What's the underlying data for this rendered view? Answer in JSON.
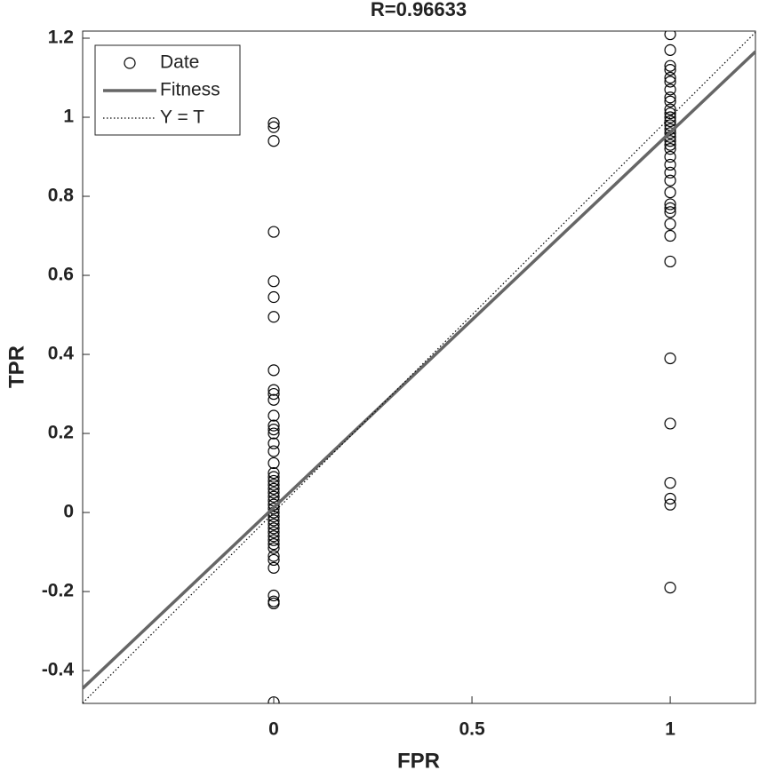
{
  "chart_data": {
    "type": "scatter",
    "title": "R=0.96633",
    "x_label": "FPR",
    "y_label": "TPR",
    "xlim": [
      -0.482,
      1.215
    ],
    "ylim": [
      -0.483,
      1.218
    ],
    "xticks": [
      0,
      0.5,
      1
    ],
    "yticks": [
      -0.4,
      -0.2,
      0,
      0.2,
      0.4,
      0.6,
      0.8,
      1,
      1.2
    ],
    "legend": "upper left",
    "series": [
      {
        "name": "Date",
        "color": "#000000",
        "marker": "circle",
        "x": [
          0,
          0,
          0,
          0,
          0,
          0,
          0,
          0,
          0,
          0,
          0,
          0,
          0,
          0,
          0,
          0,
          0,
          0,
          0,
          0,
          0,
          0,
          0,
          0,
          0,
          0,
          0,
          0,
          0,
          0,
          0,
          0,
          0,
          0,
          0,
          0,
          0,
          0,
          0,
          0,
          0,
          0,
          0,
          0,
          0,
          1,
          1,
          1,
          1,
          1,
          1,
          1,
          1,
          1,
          1,
          1,
          1,
          1,
          1,
          1,
          1,
          1,
          1,
          1,
          1,
          1,
          1,
          1,
          1,
          1,
          1,
          1,
          1,
          1,
          1,
          1,
          1,
          1,
          1,
          1,
          1,
          1
        ],
        "values": [
          0.985,
          0.975,
          0.94,
          0.71,
          0.585,
          0.545,
          0.495,
          0.36,
          0.31,
          0.3,
          0.285,
          0.245,
          0.22,
          0.21,
          0.2,
          0.175,
          0.155,
          0.125,
          0.1,
          0.09,
          0.08,
          0.07,
          0.06,
          0.05,
          0.04,
          0.03,
          0.02,
          0.01,
          0,
          -0.01,
          -0.02,
          -0.03,
          -0.04,
          -0.05,
          -0.06,
          -0.07,
          -0.08,
          -0.09,
          -0.11,
          -0.12,
          -0.14,
          -0.21,
          -0.225,
          -0.23,
          -0.48,
          1.21,
          1.17,
          1.13,
          1.12,
          1.1,
          1.09,
          1.07,
          1.05,
          1.04,
          1.02,
          1.01,
          1,
          0.99,
          0.98,
          0.97,
          0.96,
          0.95,
          0.94,
          0.93,
          0.92,
          0.9,
          0.88,
          0.86,
          0.84,
          0.81,
          0.78,
          0.77,
          0.76,
          0.73,
          0.7,
          0.635,
          0.39,
          0.225,
          0.075,
          0.035,
          0.02,
          -0.19
        ]
      },
      {
        "name": "Fitness",
        "color": "#666666",
        "line": "solid",
        "x": [
          -0.482,
          1.215
        ],
        "values": [
          -0.445,
          1.166
        ]
      },
      {
        "name": "Y = T",
        "color": "#000000",
        "line": "dotted",
        "x": [
          -0.482,
          1.215
        ],
        "values": [
          -0.482,
          1.215
        ]
      }
    ]
  }
}
